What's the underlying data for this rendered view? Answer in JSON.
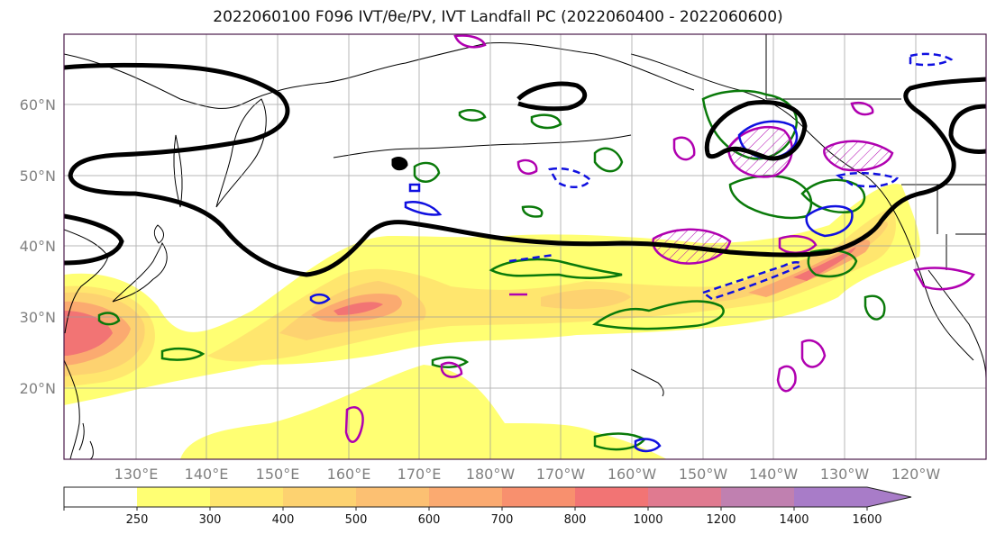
{
  "title": "2022060100 F096 IVT/θe/PV, IVT Landfall PC (2022060400 - 2022060600)",
  "map": {
    "latitude_labels": [
      "60°N",
      "50°N",
      "40°N",
      "30°N",
      "20°N"
    ],
    "longitude_labels": [
      "130°E",
      "140°E",
      "150°E",
      "160°E",
      "170°E",
      "180°W",
      "170°W",
      "160°W",
      "150°W",
      "140°W",
      "130°W",
      "120°W"
    ],
    "grid": true,
    "frame_color": "#4a1a4a",
    "contour_colors": {
      "thick": "#000000",
      "blue": "#1010e0",
      "green": "#0a7a0a",
      "magenta": "#b000b0"
    }
  },
  "colorbar": {
    "levels": [
      "250",
      "300",
      "400",
      "500",
      "600",
      "700",
      "800",
      "1000",
      "1200",
      "1400",
      "1600"
    ],
    "colors": [
      "#ffffff",
      "#ffff73",
      "#ffe66e",
      "#fdd270",
      "#fcc072",
      "#fbaa70",
      "#f8906e",
      "#f27474",
      "#e07a90",
      "#c080b0",
      "#a87cc8"
    ],
    "extend": "max"
  }
}
